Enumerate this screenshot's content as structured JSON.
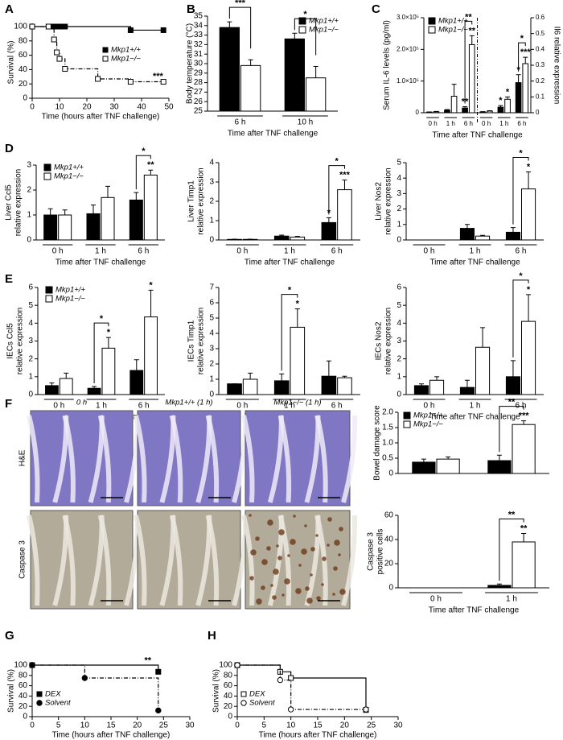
{
  "chart_data": [
    {
      "type": "line",
      "label": "A",
      "xlabel": "Time (hours after TNF challenge)",
      "ylabel": "Survival (%)",
      "xlim": [
        0,
        50
      ],
      "xticks": [
        0,
        10,
        20,
        30,
        40,
        50
      ],
      "ylim": [
        0,
        100
      ],
      "yticks": [
        0,
        20,
        40,
        60,
        80,
        100
      ],
      "series": [
        {
          "name": "Mkp1+/+",
          "color": "#000000",
          "marker": "square",
          "filled": true,
          "dashed": false,
          "x": [
            0,
            6,
            8,
            9,
            10,
            12,
            36,
            48
          ],
          "values": [
            100,
            100,
            100,
            100,
            100,
            100,
            95,
            95
          ]
        },
        {
          "name": "Mkp1−/−",
          "color": "#000000",
          "marker": "square",
          "filled": false,
          "dashed": true,
          "x": [
            0,
            6,
            8,
            9,
            10,
            12,
            24,
            36,
            48
          ],
          "values": [
            100,
            100,
            82,
            64,
            55,
            41,
            27,
            23,
            23
          ]
        }
      ],
      "annotations": [
        "***"
      ]
    },
    {
      "type": "bar",
      "label": "B",
      "ylabel": "Body temperature (°C)",
      "xlabel": "Time after TNF challenge",
      "categories": [
        "6 h",
        "10 h"
      ],
      "ylim": [
        25,
        35
      ],
      "yticks": [
        25,
        26,
        27,
        28,
        29,
        30,
        31,
        32,
        33,
        34,
        35
      ],
      "series": [
        {
          "name": "Mkp1+/+",
          "color": "#000000",
          "values": [
            33.8,
            32.6
          ],
          "errors": [
            0.6,
            0.6
          ]
        },
        {
          "name": "Mkp1−/−",
          "color": "#ffffff",
          "values": [
            29.8,
            28.5
          ],
          "errors": [
            0.6,
            1.2
          ]
        }
      ],
      "annotations": [
        "***",
        "*"
      ]
    },
    {
      "type": "bar",
      "label": "C",
      "ylabel": "Serum IL-6 levels (pg/ml)",
      "y2label": "Il6 relative expression",
      "xlabel": "Time after TNF challenge",
      "categories": [
        "0 h",
        "1 h",
        "6 h",
        "0 h",
        "1 h",
        "6 h"
      ],
      "ylim": [
        0,
        300000
      ],
      "yticks": [
        0,
        {
          "value": 100000,
          "label": "1.0×10⁵"
        },
        {
          "value": 200000,
          "label": "2.0×10⁵"
        },
        {
          "value": 300000,
          "label": "3.0×10⁵"
        }
      ],
      "y2lim": [
        0,
        0.6
      ],
      "y2ticks": [
        0,
        0.1,
        0.2,
        0.3,
        0.4,
        0.5,
        0.6
      ],
      "series": [
        {
          "name": "Mkp1+/+",
          "color": "#000000",
          "values": [
            2000,
            8000,
            15000,
            null,
            null,
            null
          ],
          "errors": [
            500,
            2000,
            4000,
            null,
            null,
            null
          ]
        },
        {
          "name": "Mkp1−/−",
          "color": "#ffffff",
          "values": [
            3000,
            52000,
            215000,
            null,
            null,
            null
          ],
          "errors": [
            1000,
            38000,
            28000,
            null,
            null,
            null
          ]
        },
        {
          "color": "#000000",
          "axis": "y2",
          "values": [
            null,
            null,
            null,
            0.005,
            0.035,
            0.19
          ],
          "errors": [
            null,
            null,
            null,
            0.002,
            0.01,
            0.05
          ]
        },
        {
          "color": "#ffffff",
          "axis": "y2",
          "values": [
            null,
            null,
            null,
            0.01,
            0.085,
            0.31
          ],
          "errors": [
            null,
            null,
            null,
            0.003,
            0.015,
            0.04
          ]
        }
      ],
      "annotations": [
        "**",
        "**",
        "**",
        "*",
        "*",
        "*",
        "***",
        "*"
      ]
    },
    {
      "type": "bar",
      "label": "D",
      "ylabel": [
        "Liver Ccl5",
        "relative expression"
      ],
      "xlabel": "Time after TNF challenge",
      "categories": [
        "0 h",
        "1 h",
        "6 h"
      ],
      "ylim": [
        0,
        3
      ],
      "yticks": [
        0,
        1,
        2,
        3
      ],
      "series": [
        {
          "name": "Mkp1+/+",
          "color": "#000000",
          "values": [
            1.0,
            1.05,
            1.6
          ],
          "errors": [
            0.25,
            0.35,
            0.3
          ]
        },
        {
          "name": "Mkp1−/−",
          "color": "#ffffff",
          "values": [
            1.0,
            1.7,
            2.6
          ],
          "errors": [
            0.2,
            0.45,
            0.2
          ]
        }
      ],
      "annotations": [
        "*",
        "**"
      ]
    },
    {
      "type": "bar",
      "ylabel": [
        "Liver Timp1",
        "relative expression"
      ],
      "xlabel": "Time after TNF challenge",
      "categories": [
        "0 h",
        "1 h",
        "6 h"
      ],
      "ylim": [
        0,
        4
      ],
      "yticks": [
        0,
        1,
        2,
        3,
        4
      ],
      "series": [
        {
          "color": "#000000",
          "values": [
            0.03,
            0.2,
            0.9
          ],
          "errors": [
            0.01,
            0.05,
            0.25
          ]
        },
        {
          "color": "#ffffff",
          "values": [
            0.03,
            0.15,
            2.6
          ],
          "errors": [
            0.01,
            0.03,
            0.5
          ]
        }
      ],
      "annotations": [
        "*",
        "*",
        "***"
      ]
    },
    {
      "type": "bar",
      "ylabel": [
        "Liver Nos2",
        "relative expression"
      ],
      "xlabel": "Time after TNF challenge",
      "categories": [
        "0 h",
        "1 h",
        "6 h"
      ],
      "ylim": [
        0,
        5
      ],
      "yticks": [
        0,
        1,
        2,
        3,
        4,
        5
      ],
      "series": [
        {
          "color": "#000000",
          "values": [
            0,
            0.75,
            0.5
          ],
          "errors": [
            0,
            0.25,
            0.3
          ]
        },
        {
          "color": "#ffffff",
          "values": [
            0,
            0.25,
            3.3
          ],
          "errors": [
            0,
            0.05,
            1.1
          ]
        }
      ],
      "annotations": [
        "*",
        "*"
      ]
    },
    {
      "type": "bar",
      "label": "E",
      "ylabel": [
        "IECs Ccl5",
        "relative expression"
      ],
      "xlabel": "Time after TNF challenge",
      "categories": [
        "0 h",
        "1 h",
        "6 h"
      ],
      "ylim": [
        0,
        6
      ],
      "yticks": [
        0,
        1,
        2,
        3,
        4,
        5,
        6
      ],
      "series": [
        {
          "name": "Mkp1+/+",
          "color": "#000000",
          "values": [
            0.5,
            0.35,
            1.35
          ],
          "errors": [
            0.15,
            0.1,
            0.6
          ]
        },
        {
          "name": "Mkp1−/−",
          "color": "#ffffff",
          "values": [
            0.9,
            2.6,
            4.35
          ],
          "errors": [
            0.3,
            0.6,
            1.5
          ]
        }
      ],
      "annotations": [
        "*",
        "*",
        "*"
      ]
    },
    {
      "type": "bar",
      "ylabel": [
        "IECs Timp1",
        "relative expression"
      ],
      "xlabel": "Time after TNF challenge",
      "categories": [
        "0 h",
        "1 h",
        "6 h"
      ],
      "ylim": [
        0,
        7
      ],
      "yticks": [
        0,
        1,
        2,
        3,
        4,
        5,
        6,
        7
      ],
      "series": [
        {
          "color": "#000000",
          "values": [
            0.7,
            0.9,
            1.2
          ],
          "errors": [
            0,
            0.45,
            1.0
          ]
        },
        {
          "color": "#ffffff",
          "values": [
            1.0,
            4.4,
            1.1
          ],
          "errors": [
            0.4,
            1.2,
            0.1
          ]
        }
      ],
      "annotations": [
        "*",
        "*"
      ]
    },
    {
      "type": "bar",
      "ylabel": [
        "IECs Nos2",
        "relative expression"
      ],
      "xlabel": "Time after TNF challenge",
      "categories": [
        "0 h",
        "1 h",
        "6 h"
      ],
      "ylim": [
        0,
        6
      ],
      "yticks": [
        0,
        1,
        2,
        3,
        4,
        5,
        6
      ],
      "series": [
        {
          "color": "#000000",
          "values": [
            0.5,
            0.4,
            1.0
          ],
          "errors": [
            0.1,
            0.4,
            0.9
          ]
        },
        {
          "color": "#ffffff",
          "values": [
            0.8,
            2.65,
            4.1
          ],
          "errors": [
            0.2,
            1.1,
            1.5
          ]
        }
      ],
      "annotations": [
        "*",
        "*"
      ]
    },
    {
      "type": "bar",
      "ylabel": "Bowel damage score",
      "ylim": [
        0,
        2
      ],
      "yticks": [
        0,
        0.5,
        {
          "value": 1,
          "label": "1.0"
        },
        1.5,
        {
          "value": 2,
          "label": "2.0"
        }
      ],
      "series": [
        {
          "name": "Mkp1+/+",
          "color": "#000000",
          "values": [
            0.37,
            0.42
          ],
          "errors": [
            0.1,
            0.18
          ]
        },
        {
          "name": "Mkp1−/−",
          "color": "#ffffff",
          "values": [
            0.47,
            1.6
          ],
          "errors": [
            0.07,
            0.12
          ]
        }
      ],
      "annotations": [
        "**",
        "***"
      ]
    },
    {
      "type": "bar",
      "ylabel": [
        "Caspase 3",
        "positive cells"
      ],
      "xlabel": "Time after TNF challenge",
      "categories": [
        "0 h",
        "1 h"
      ],
      "ylim": [
        0,
        60
      ],
      "yticks": [
        0,
        20,
        40,
        60
      ],
      "series": [
        {
          "color": "#000000",
          "values": [
            0,
            2
          ],
          "errors": [
            0,
            1.2
          ]
        },
        {
          "color": "#ffffff",
          "values": [
            0,
            38
          ],
          "errors": [
            0,
            7
          ]
        }
      ],
      "annotations": [
        "**",
        "**"
      ]
    },
    {
      "type": "line",
      "label": "G",
      "xlabel": "Time (hours after TNF challenge)",
      "ylabel": "Survival (%)",
      "xlim": [
        0,
        30
      ],
      "xticks": [
        0,
        5,
        10,
        15,
        20,
        25,
        30
      ],
      "ylim": [
        0,
        100
      ],
      "yticks": [
        0,
        20,
        40,
        60,
        80,
        100
      ],
      "series": [
        {
          "name": "DEX",
          "color": "#000000",
          "marker": "square",
          "filled": true,
          "dashed": false,
          "x": [
            0,
            24
          ],
          "values": [
            100,
            87
          ]
        },
        {
          "name": "Solvent",
          "color": "#000000",
          "marker": "circle",
          "filled": true,
          "dashed": true,
          "x": [
            0,
            10,
            24
          ],
          "values": [
            100,
            75,
            12
          ]
        }
      ],
      "annotations": [
        "**"
      ]
    },
    {
      "type": "line",
      "label": "H",
      "xlabel": "Time (hours after TNF challenge)",
      "ylabel": "Survival (%)",
      "xlim": [
        0,
        30
      ],
      "xticks": [
        0,
        5,
        10,
        15,
        20,
        25,
        30
      ],
      "ylim": [
        0,
        100
      ],
      "yticks": [
        0,
        20,
        40,
        60,
        80,
        100
      ],
      "series": [
        {
          "name": "DEX",
          "color": "#000000",
          "marker": "square",
          "filled": false,
          "dashed": false,
          "x": [
            0,
            8,
            10,
            24
          ],
          "values": [
            100,
            87,
            75,
            13
          ]
        },
        {
          "name": "Solvent",
          "color": "#000000",
          "marker": "circle",
          "filled": false,
          "dashed": true,
          "x": [
            0,
            8,
            10,
            24
          ],
          "values": [
            100,
            71,
            14,
            14
          ]
        }
      ]
    }
  ],
  "panel_f": {
    "label": "F",
    "column_titles": [
      "0 h",
      "Mkp1+/+ (1 h)",
      "Mkp1−/− (1 h)"
    ],
    "row_titles": [
      "H&E",
      "Caspase 3"
    ]
  }
}
